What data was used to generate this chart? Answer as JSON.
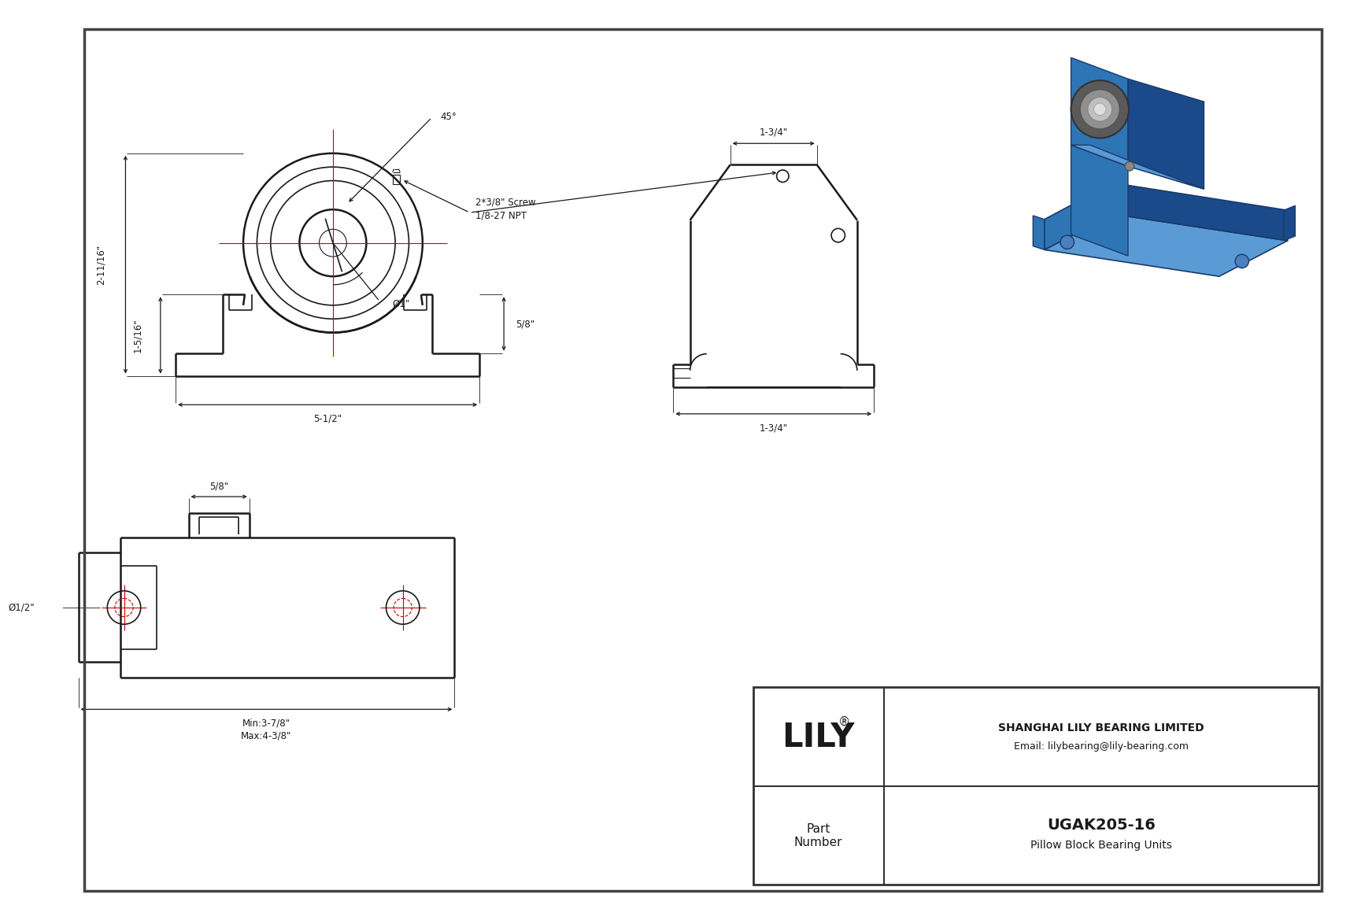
{
  "bg_color": "#ffffff",
  "line_color": "#1a1a1a",
  "dim_color": "#1a1a1a",
  "red_color": "#cc0000",
  "border_color": "#444444",
  "title": "UGAK205-16",
  "subtitle": "Pillow Block Bearing Units",
  "company": "SHANGHAI LILY BEARING LIMITED",
  "email": "Email: lilybearing@lily-bearing.com",
  "part_label": "Part\nNumber",
  "logo_reg": "®",
  "dim_total_h": "2-11/16\"",
  "dim_base_h": "1-5/16\"",
  "dim_base_w": "5-1/2\"",
  "dim_bore": "Ø1\"",
  "dim_slot_h": "5/8\"",
  "dim_side_top_w": "1-3/4\"",
  "dim_side_bot_w": "1-3/4\"",
  "dim_angle": "45°",
  "dim_screw": "2*3/8\" Screw",
  "dim_npt": "1/8-27 NPT",
  "dim_shaft_dia": "Ø1/2\"",
  "dim_slot_w": "5/8\"",
  "dim_min": "Min:3-7/8\"",
  "dim_max": "Max:4-3/8\""
}
